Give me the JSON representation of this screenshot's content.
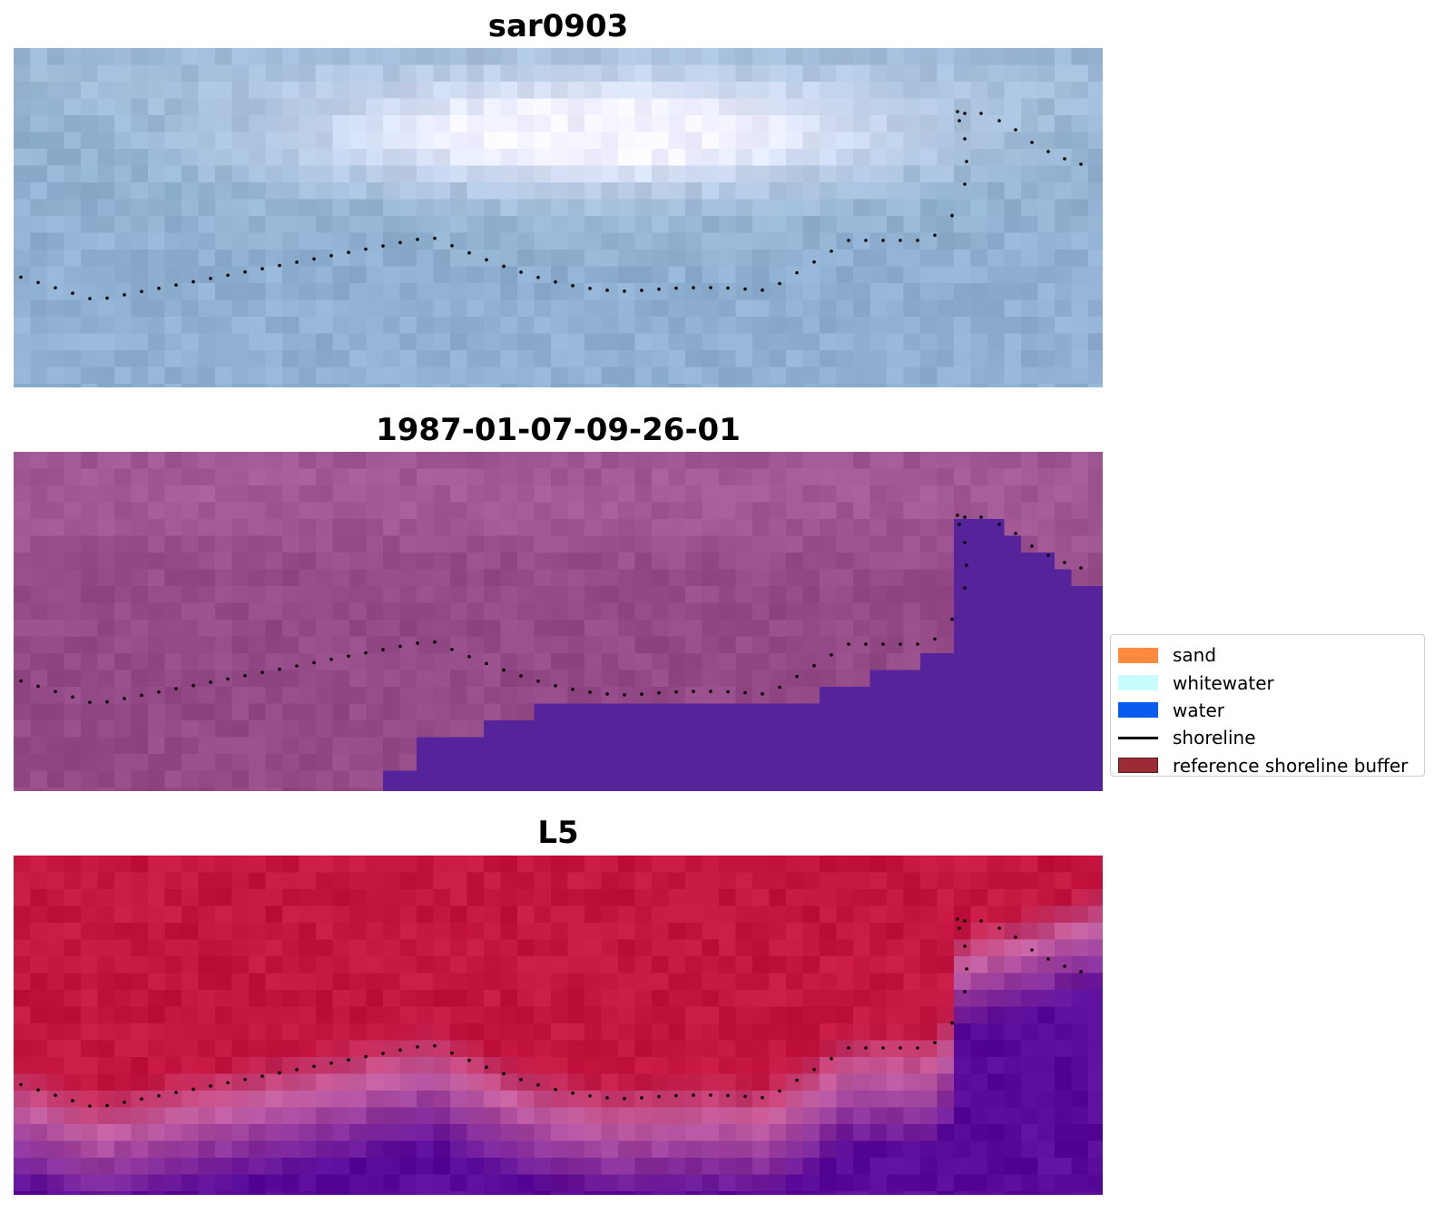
{
  "panels": [
    {
      "title": "sar0903",
      "style": "sar"
    },
    {
      "title": "1987-01-07-09-26-01",
      "style": "classified"
    },
    {
      "title": "L5",
      "style": "index"
    }
  ],
  "legend": {
    "items": [
      {
        "label": "sand",
        "color": "#ff8a3d",
        "kind": "patch"
      },
      {
        "label": "whitewater",
        "color": "#c9fcff",
        "kind": "patch"
      },
      {
        "label": "water",
        "color": "#0a5cf0",
        "kind": "patch"
      },
      {
        "label": "shoreline",
        "color": "#000000",
        "kind": "line"
      },
      {
        "label": "reference shoreline buffer",
        "color": "#9b2c35",
        "kind": "patch"
      }
    ]
  },
  "colors": {
    "background": "#ffffff",
    "water_class": "#55249b",
    "land_class": "#8e4a87",
    "index_high": "#c3153f",
    "index_low": "#5a0a98",
    "sar_bright": "#f2f2fb",
    "sar_dark": "#8fb0c8"
  }
}
